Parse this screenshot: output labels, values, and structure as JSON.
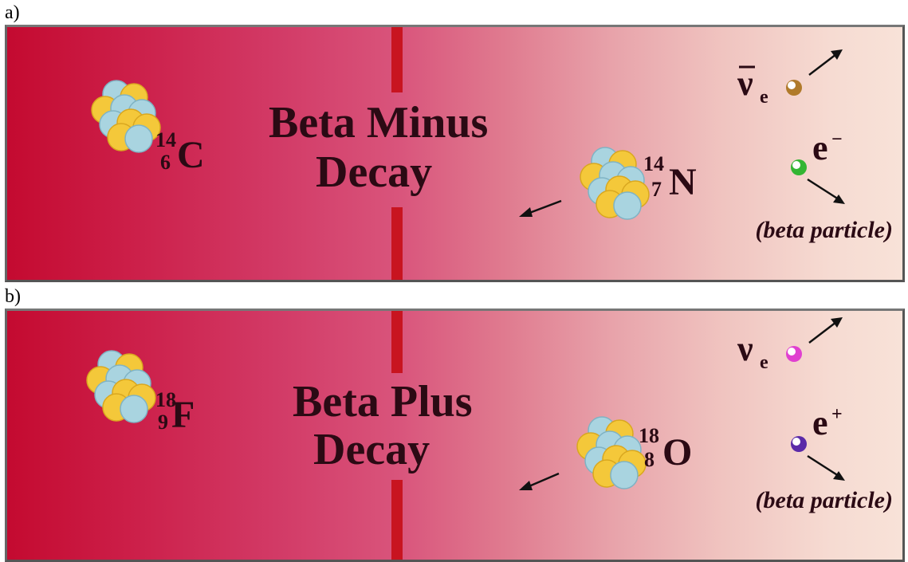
{
  "panels": [
    {
      "label": "a)",
      "title_line1": "Beta Minus",
      "title_line2": "Decay",
      "parent": {
        "mass": "14",
        "atomic": "6",
        "symbol": "C"
      },
      "daughter": {
        "mass": "14",
        "atomic": "7",
        "symbol": "N"
      },
      "neutrino": {
        "symbol": "ν",
        "subscript": "e",
        "bar": true,
        "color": "#b07a2a"
      },
      "particle": {
        "symbol": "e",
        "charge": "−",
        "color": "#33b533"
      },
      "note": "(beta particle)"
    },
    {
      "label": "b)",
      "title_line1": "Beta Plus",
      "title_line2": "Decay",
      "parent": {
        "mass": "18",
        "atomic": "9",
        "symbol": "F"
      },
      "daughter": {
        "mass": "18",
        "atomic": "8",
        "symbol": "O"
      },
      "neutrino": {
        "symbol": "ν",
        "subscript": "e",
        "bar": false,
        "color": "#e040d0"
      },
      "particle": {
        "symbol": "e",
        "charge": "+",
        "color": "#5a2aa8"
      },
      "note": "(beta particle)"
    }
  ],
  "colors": {
    "nucleon_yellow": "#f4c83a",
    "nucleon_blue": "#a9d4e0",
    "separator": "#c81420",
    "text": "#2b0a14"
  }
}
